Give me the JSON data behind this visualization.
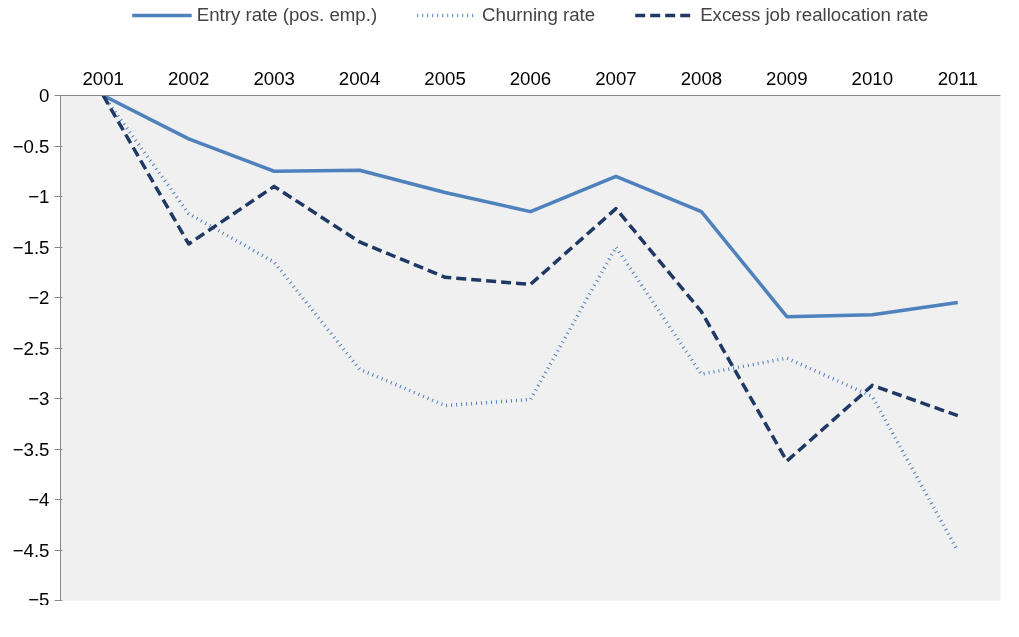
{
  "chart_data": {
    "type": "line",
    "categories": [
      "2001",
      "2002",
      "2003",
      "2004",
      "2005",
      "2006",
      "2007",
      "2008",
      "2009",
      "2010",
      "2011"
    ],
    "series": [
      {
        "name": "Entry rate (pos. emp.)",
        "color": "#4f81bd",
        "line_style": "solid",
        "values": [
          0,
          -0.43,
          -0.75,
          -0.74,
          -0.96,
          -1.15,
          -0.8,
          -1.15,
          -2.19,
          -2.17,
          -2.05
        ]
      },
      {
        "name": "Churning rate",
        "color": "#4f81bd",
        "line_style": "dotted",
        "values": [
          0,
          -1.17,
          -1.65,
          -2.71,
          -3.07,
          -3.01,
          -1.5,
          -2.76,
          -2.6,
          -2.98,
          -4.51
        ]
      },
      {
        "name": "Excess job reallocation rate",
        "color": "#1f3864",
        "line_style": "dashed",
        "values": [
          0,
          -1.47,
          -0.9,
          -1.45,
          -1.8,
          -1.87,
          -1.12,
          -2.14,
          -3.62,
          -2.87,
          -3.17
        ]
      }
    ],
    "ylim": [
      -5,
      0
    ],
    "yticks": [
      0,
      -0.5,
      -1,
      -1.5,
      -2,
      -2.5,
      -3,
      -3.5,
      -4,
      -4.5,
      -5
    ],
    "grid": false,
    "legend": "top"
  }
}
